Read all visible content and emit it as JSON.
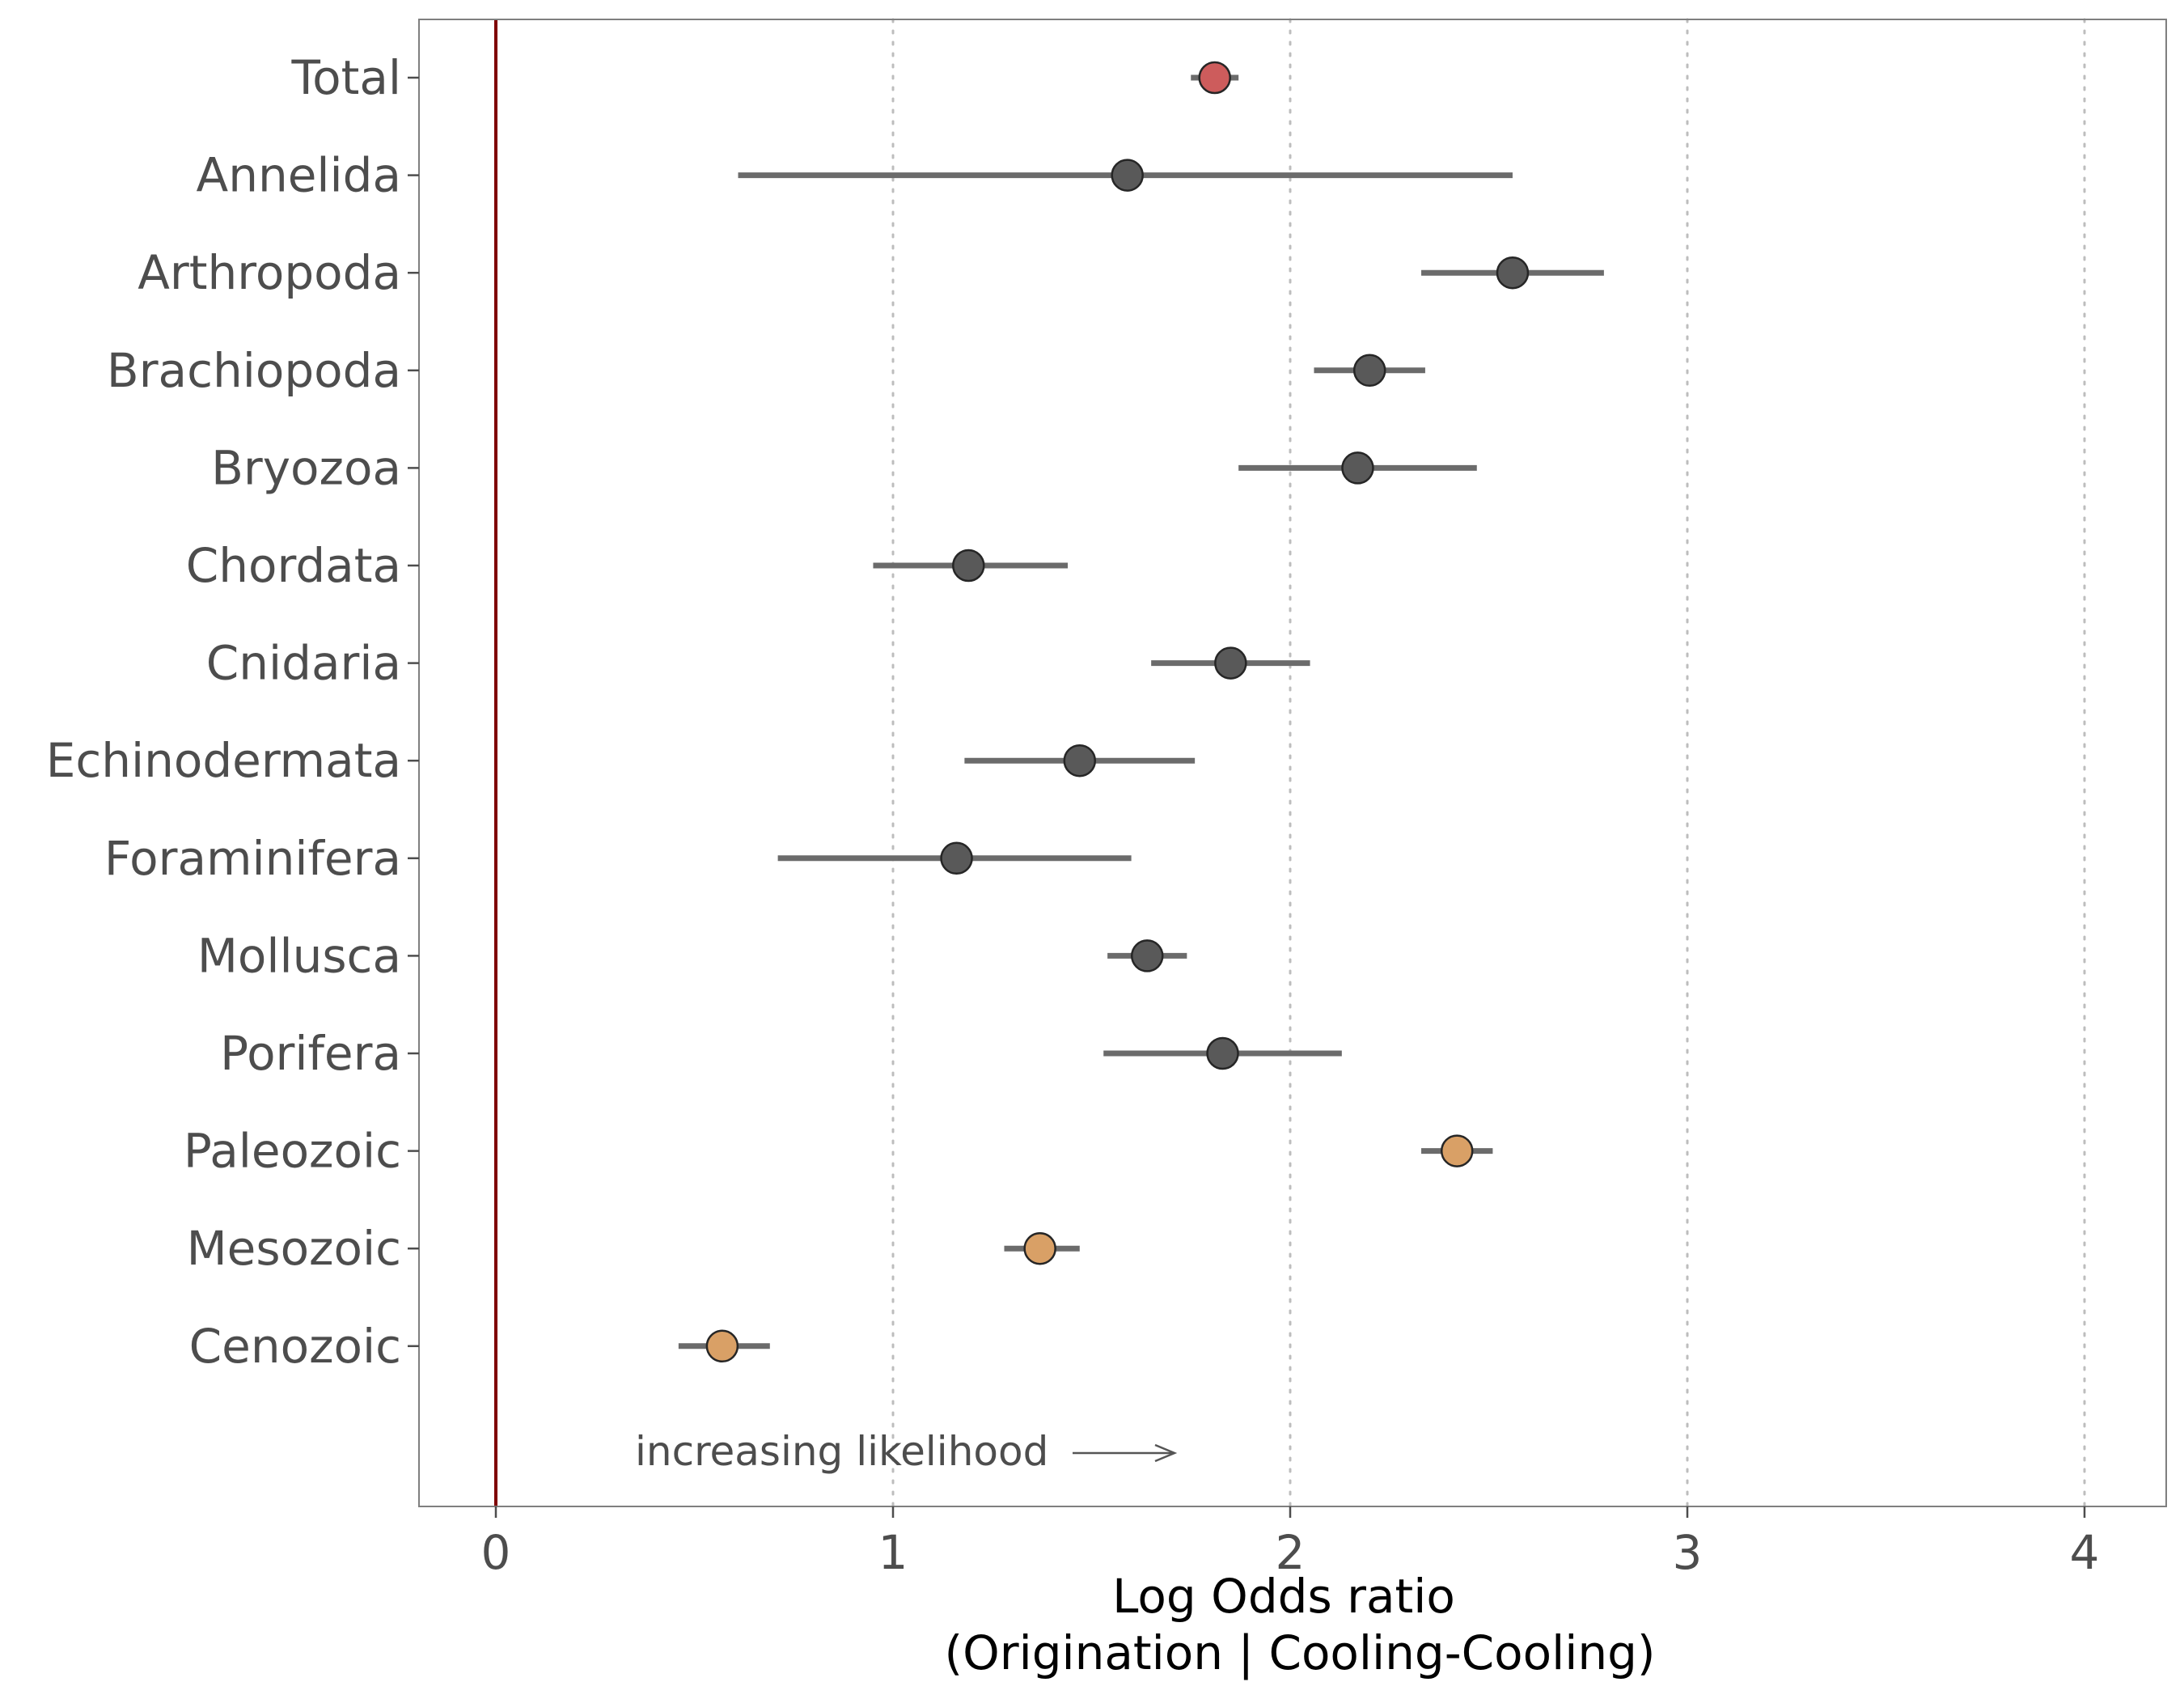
{
  "chart_data": {
    "type": "scatter",
    "subtype": "forest-plot",
    "title": "",
    "xlabel_line1": "Log Odds ratio",
    "xlabel_line2": "(Origination | Cooling-Cooling)",
    "ylabel": "",
    "xlim": [
      -0.2,
      4.2
    ],
    "x_ticks": [
      0,
      1,
      2,
      3,
      4
    ],
    "reference_line_x": 0,
    "grid": {
      "vertical_dotted": true,
      "horizontal": false
    },
    "legend": "none",
    "annotation": {
      "text": "increasing likelihood",
      "arrow": "right"
    },
    "colors": {
      "total": "#cd5c5c",
      "taxon": "#595959",
      "era": "#d9a066",
      "interval": "#6b6b6b",
      "reference": "#7f0000",
      "grid": "#bdbdbd",
      "border": "#7f7f7f"
    },
    "rows": [
      {
        "label": "Total",
        "group": "total",
        "estimate": 1.81,
        "lower": 1.75,
        "upper": 1.87
      },
      {
        "label": "Annelida",
        "group": "taxon",
        "estimate": 1.59,
        "lower": 0.61,
        "upper": 2.56
      },
      {
        "label": "Arthropoda",
        "group": "taxon",
        "estimate": 2.56,
        "lower": 2.33,
        "upper": 2.79
      },
      {
        "label": "Brachiopoda",
        "group": "taxon",
        "estimate": 2.2,
        "lower": 2.06,
        "upper": 2.34
      },
      {
        "label": "Bryozoa",
        "group": "taxon",
        "estimate": 2.17,
        "lower": 1.87,
        "upper": 2.47
      },
      {
        "label": "Chordata",
        "group": "taxon",
        "estimate": 1.19,
        "lower": 0.95,
        "upper": 1.44
      },
      {
        "label": "Cnidaria",
        "group": "taxon",
        "estimate": 1.85,
        "lower": 1.65,
        "upper": 2.05
      },
      {
        "label": "Echinodermata",
        "group": "taxon",
        "estimate": 1.47,
        "lower": 1.18,
        "upper": 1.76
      },
      {
        "label": "Foraminifera",
        "group": "taxon",
        "estimate": 1.16,
        "lower": 0.71,
        "upper": 1.6
      },
      {
        "label": "Mollusca",
        "group": "taxon",
        "estimate": 1.64,
        "lower": 1.54,
        "upper": 1.74
      },
      {
        "label": "Porifera",
        "group": "taxon",
        "estimate": 1.83,
        "lower": 1.53,
        "upper": 2.13
      },
      {
        "label": "Paleozoic",
        "group": "era",
        "estimate": 2.42,
        "lower": 2.33,
        "upper": 2.51
      },
      {
        "label": "Mesozoic",
        "group": "era",
        "estimate": 1.37,
        "lower": 1.28,
        "upper": 1.47
      },
      {
        "label": "Cenozoic",
        "group": "era",
        "estimate": 0.57,
        "lower": 0.46,
        "upper": 0.69
      }
    ]
  }
}
